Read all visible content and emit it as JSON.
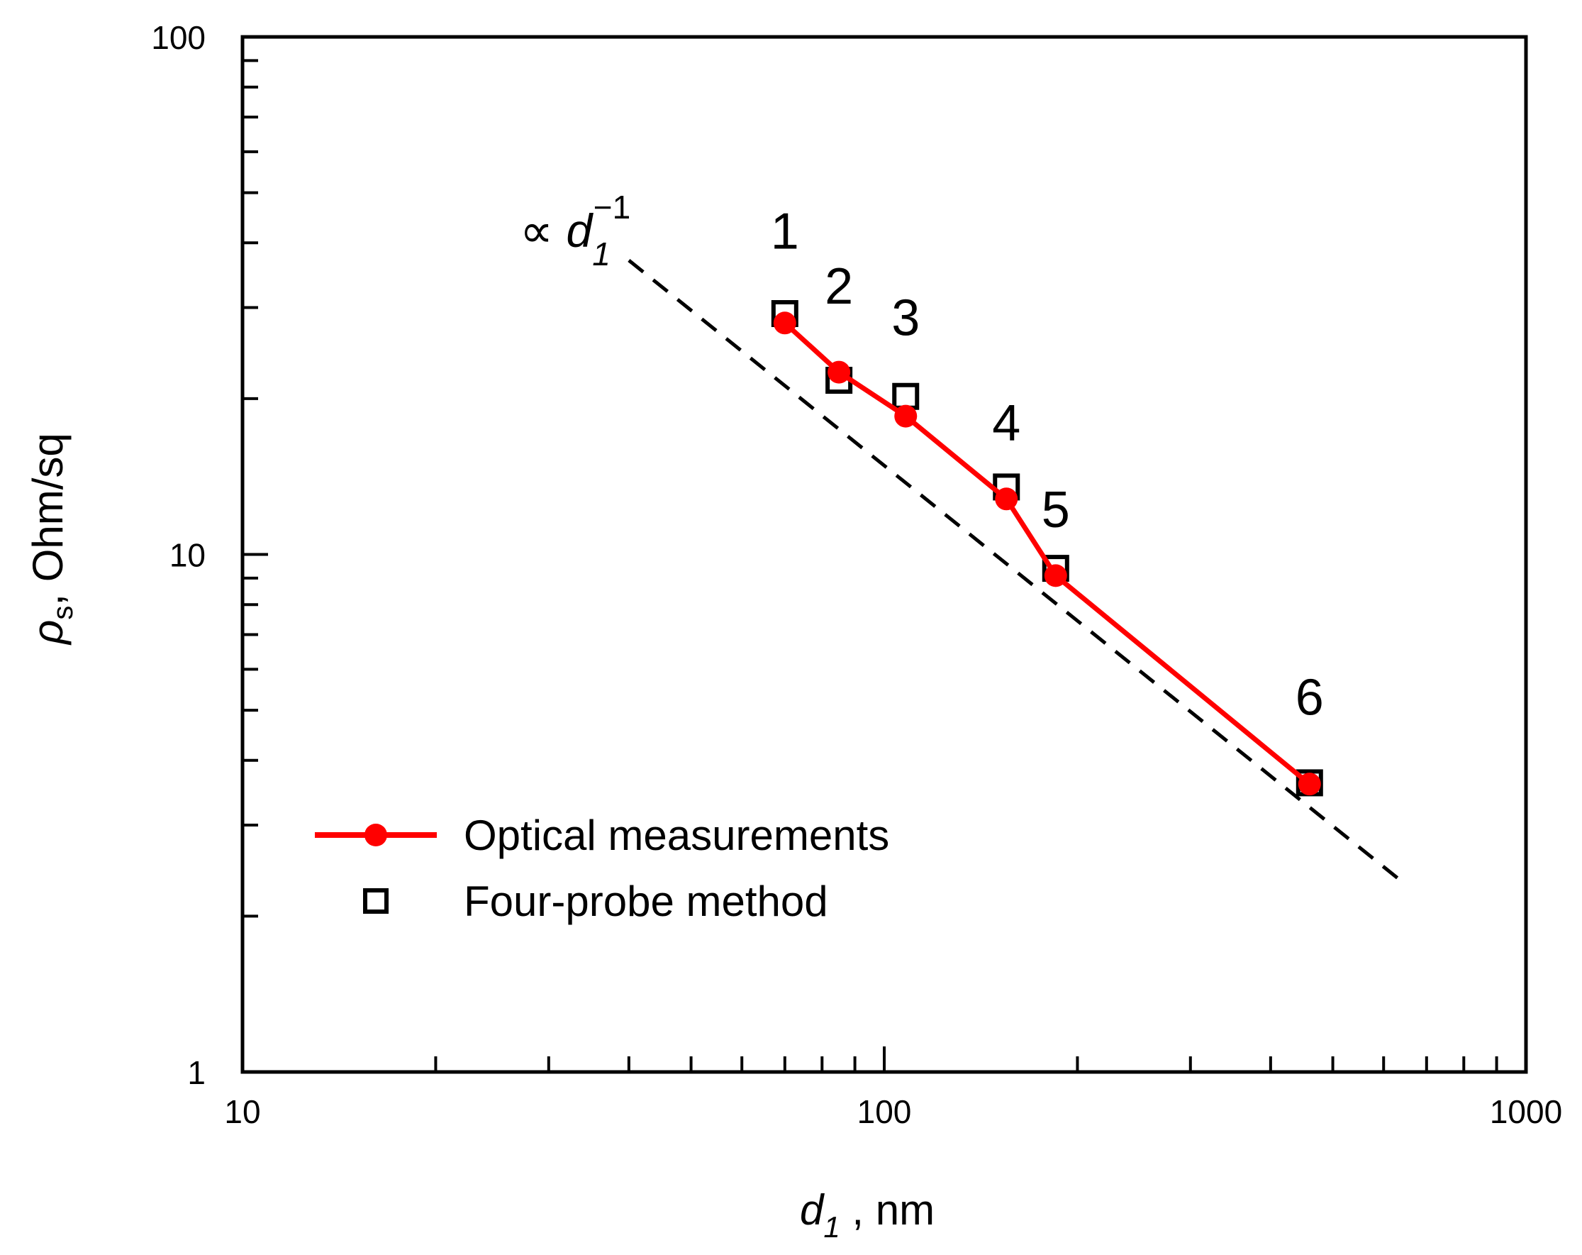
{
  "chart_data": {
    "type": "line",
    "scale": {
      "x": "log",
      "y": "log"
    },
    "xlim": [
      10,
      1000
    ],
    "ylim": [
      1,
      100
    ],
    "x_tick_labels": [
      "10",
      "100",
      "1000"
    ],
    "y_tick_labels": [
      "1",
      "10",
      "100"
    ],
    "xlabel": {
      "symbol": "d",
      "subscript": "1",
      "rest": " , nm"
    },
    "ylabel": {
      "symbol": "ρ",
      "subscript": "s",
      "rest": ", Ohm/sq"
    },
    "series": [
      {
        "name": "Optical measurements",
        "style": "line-marker",
        "color": "#ff0000",
        "x": [
          70,
          85,
          108,
          155,
          185,
          460
        ],
        "y": [
          28,
          22.5,
          18.5,
          12.8,
          9.1,
          3.6
        ]
      },
      {
        "name": "Four-probe method",
        "style": "open-square",
        "color": "#000000",
        "x": [
          70,
          85,
          108,
          155,
          185,
          460
        ],
        "y": [
          29.2,
          21.7,
          20.2,
          13.5,
          9.4,
          3.62
        ]
      }
    ],
    "fit_line": {
      "label": {
        "prefix": "∝ ",
        "symbol": "d",
        "subscript": "1",
        "superscript": "−1"
      },
      "x": [
        40,
        650
      ],
      "y": [
        37,
        2.3
      ],
      "style": "dashed",
      "color": "#000000"
    },
    "point_labels": [
      {
        "text": "1",
        "x": 70,
        "y": 39
      },
      {
        "text": "2",
        "x": 85,
        "y": 30.5
      },
      {
        "text": "3",
        "x": 108,
        "y": 26.5
      },
      {
        "text": "4",
        "x": 155,
        "y": 16.6
      },
      {
        "text": "5",
        "x": 185,
        "y": 11.3
      },
      {
        "text": "6",
        "x": 460,
        "y": 4.9
      }
    ],
    "legend_position": "lower-left"
  }
}
